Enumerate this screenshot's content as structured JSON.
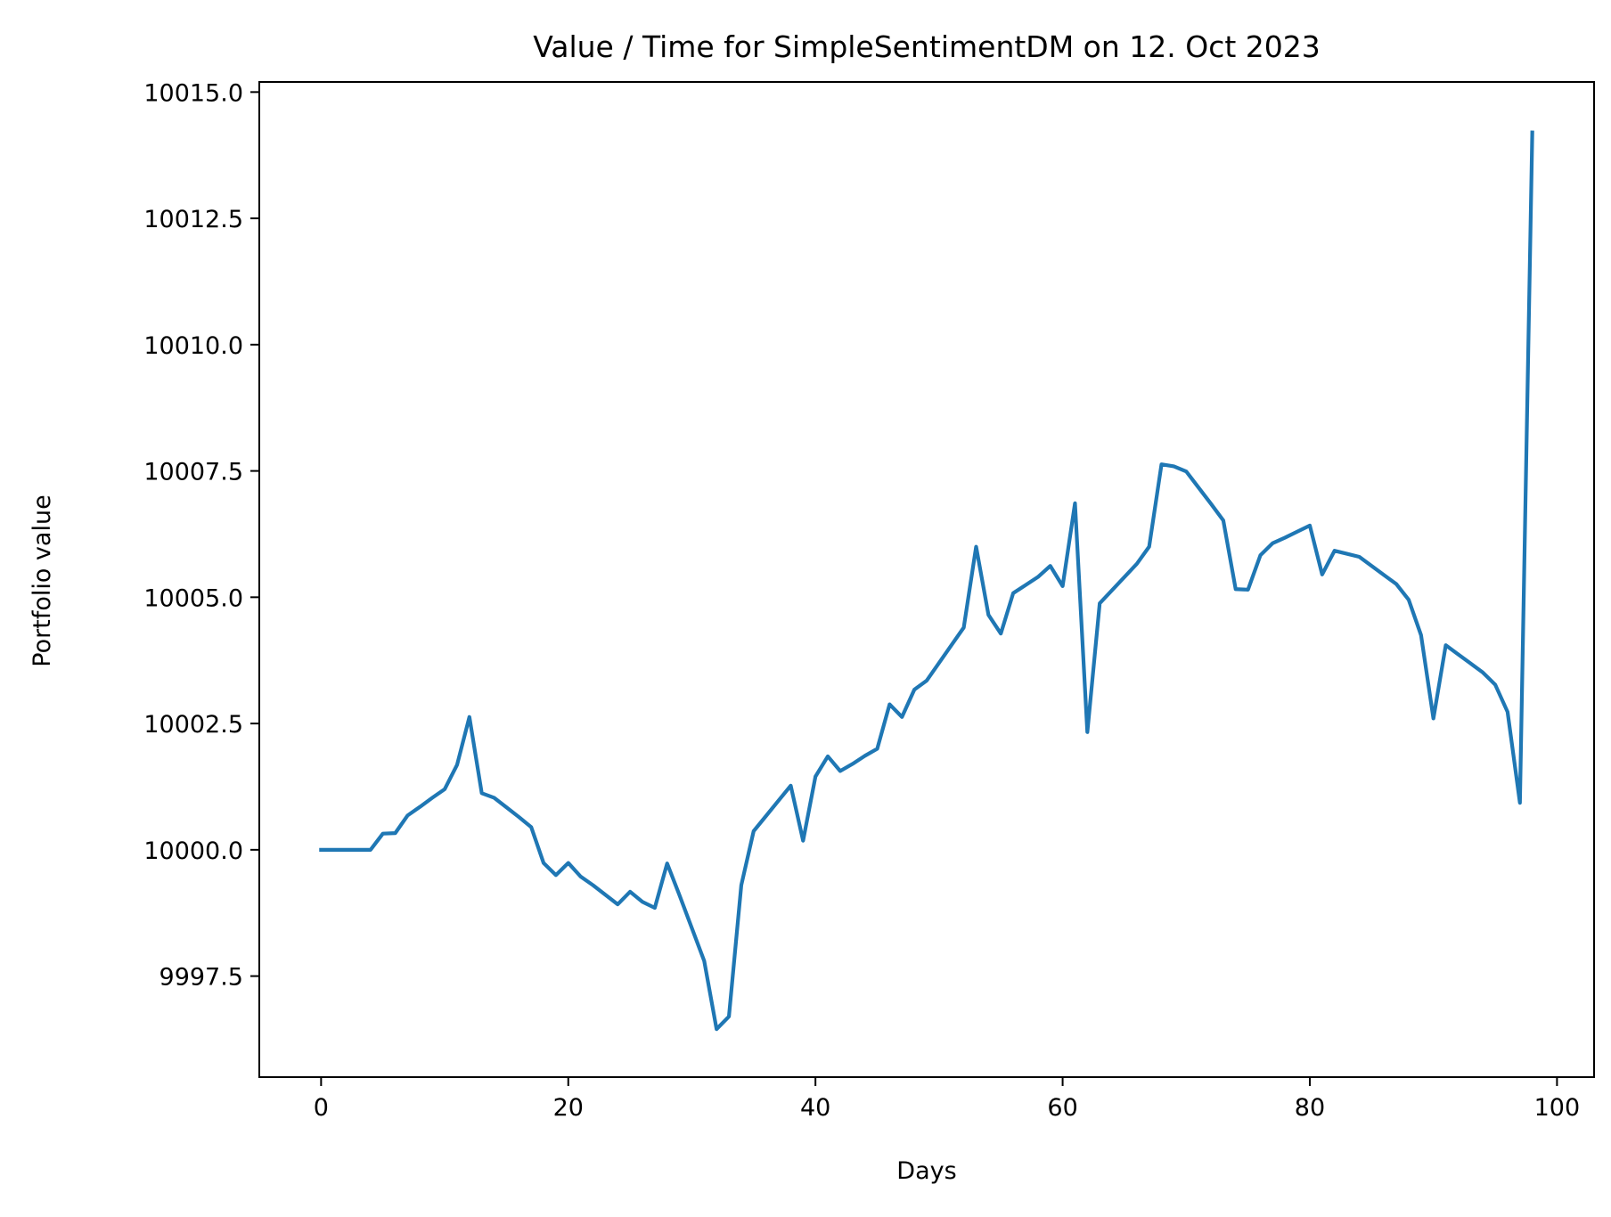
{
  "chart_data": {
    "type": "line",
    "title": "Value / Time for SimpleSentimentDM on 12. Oct 2023",
    "xlabel": "Days",
    "ylabel": "Portfolio value",
    "xlim": [
      -5,
      103
    ],
    "ylim": [
      9995.5,
      10015.2
    ],
    "xticks": [
      0,
      20,
      40,
      60,
      80,
      100
    ],
    "xtick_labels": [
      "0",
      "20",
      "40",
      "60",
      "80",
      "100"
    ],
    "yticks": [
      9997.5,
      10000.0,
      10002.5,
      10005.0,
      10007.5,
      10010.0,
      10012.5,
      10015.0
    ],
    "ytick_labels": [
      "9997.5",
      "10000.0",
      "10002.5",
      "10005.0",
      "10007.5",
      "10010.0",
      "10012.5",
      "10015.0"
    ],
    "grid": false,
    "series": [
      {
        "color": "#1f77b4",
        "x": [
          0,
          1,
          2,
          3,
          4,
          5,
          6,
          7,
          8,
          9,
          10,
          11,
          12,
          13,
          14,
          15,
          16,
          17,
          18,
          19,
          20,
          21,
          22,
          23,
          24,
          25,
          26,
          27,
          28,
          29,
          30,
          31,
          32,
          33,
          34,
          35,
          36,
          37,
          38,
          39,
          40,
          41,
          42,
          43,
          44,
          45,
          46,
          47,
          48,
          49,
          50,
          51,
          52,
          53,
          54,
          55,
          56,
          57,
          58,
          59,
          60,
          61,
          62,
          63,
          64,
          65,
          66,
          67,
          68,
          69,
          70,
          71,
          72,
          73,
          74,
          75,
          76,
          77,
          78,
          79,
          80,
          81,
          82,
          83,
          84,
          85,
          86,
          87,
          88,
          89,
          90,
          91,
          92,
          93,
          94,
          95,
          96,
          97,
          98
        ],
        "y": [
          10000.0,
          10000.0,
          10000.0,
          10000.0,
          10000.0,
          10000.32,
          10000.33,
          10000.68,
          10000.85,
          10001.03,
          10001.2,
          10001.68,
          10002.63,
          10001.12,
          10001.03,
          10000.84,
          10000.65,
          10000.45,
          9999.74,
          9999.5,
          9999.74,
          9999.47,
          9999.3,
          9999.11,
          9998.92,
          9999.17,
          9998.97,
          9998.85,
          9999.73,
          9999.1,
          9998.45,
          9997.8,
          9996.45,
          9996.7,
          9999.3,
          10000.37,
          10000.67,
          10000.97,
          10001.27,
          10000.18,
          10001.45,
          10001.85,
          10001.56,
          10001.7,
          10001.86,
          10002.0,
          10002.88,
          10002.63,
          10003.17,
          10003.35,
          10003.7,
          10004.05,
          10004.4,
          10006.0,
          10004.65,
          10004.28,
          10005.08,
          10005.24,
          10005.4,
          10005.62,
          10005.22,
          10006.86,
          10002.33,
          10004.88,
          10005.14,
          10005.4,
          10005.66,
          10006.0,
          10007.63,
          10007.59,
          10007.49,
          10007.17,
          10006.85,
          10006.52,
          10005.16,
          10005.15,
          10005.83,
          10006.07,
          10006.18,
          10006.3,
          10006.42,
          10005.45,
          10005.92,
          10005.86,
          10005.8,
          10005.62,
          10005.44,
          10005.26,
          10004.95,
          10004.25,
          10002.6,
          10004.05,
          10003.87,
          10003.69,
          10003.51,
          10003.27,
          10002.73,
          10000.93,
          10014.2
        ]
      }
    ]
  }
}
